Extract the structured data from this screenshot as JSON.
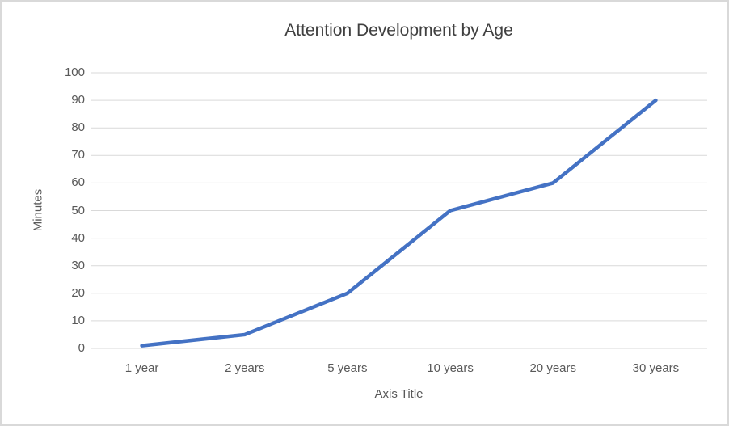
{
  "chart_data": {
    "type": "line",
    "title": "Attention Development by Age",
    "categories": [
      "1 year",
      "2 years",
      "5 years",
      "10 years",
      "20 years",
      "30 years"
    ],
    "series": [
      {
        "name": "Minutes",
        "values": [
          1,
          5,
          20,
          50,
          60,
          90
        ]
      }
    ],
    "xlabel": "Axis Title",
    "ylabel": "Minutes",
    "ylim": [
      0,
      100
    ],
    "ytick_step": 10,
    "grid": true,
    "legend_position": "none",
    "colors": {
      "line": "#4472C4",
      "gridline": "#d9d9d9",
      "axis_text": "#595959",
      "title_text": "#404040",
      "frame_border": "#d9d9d9"
    }
  }
}
